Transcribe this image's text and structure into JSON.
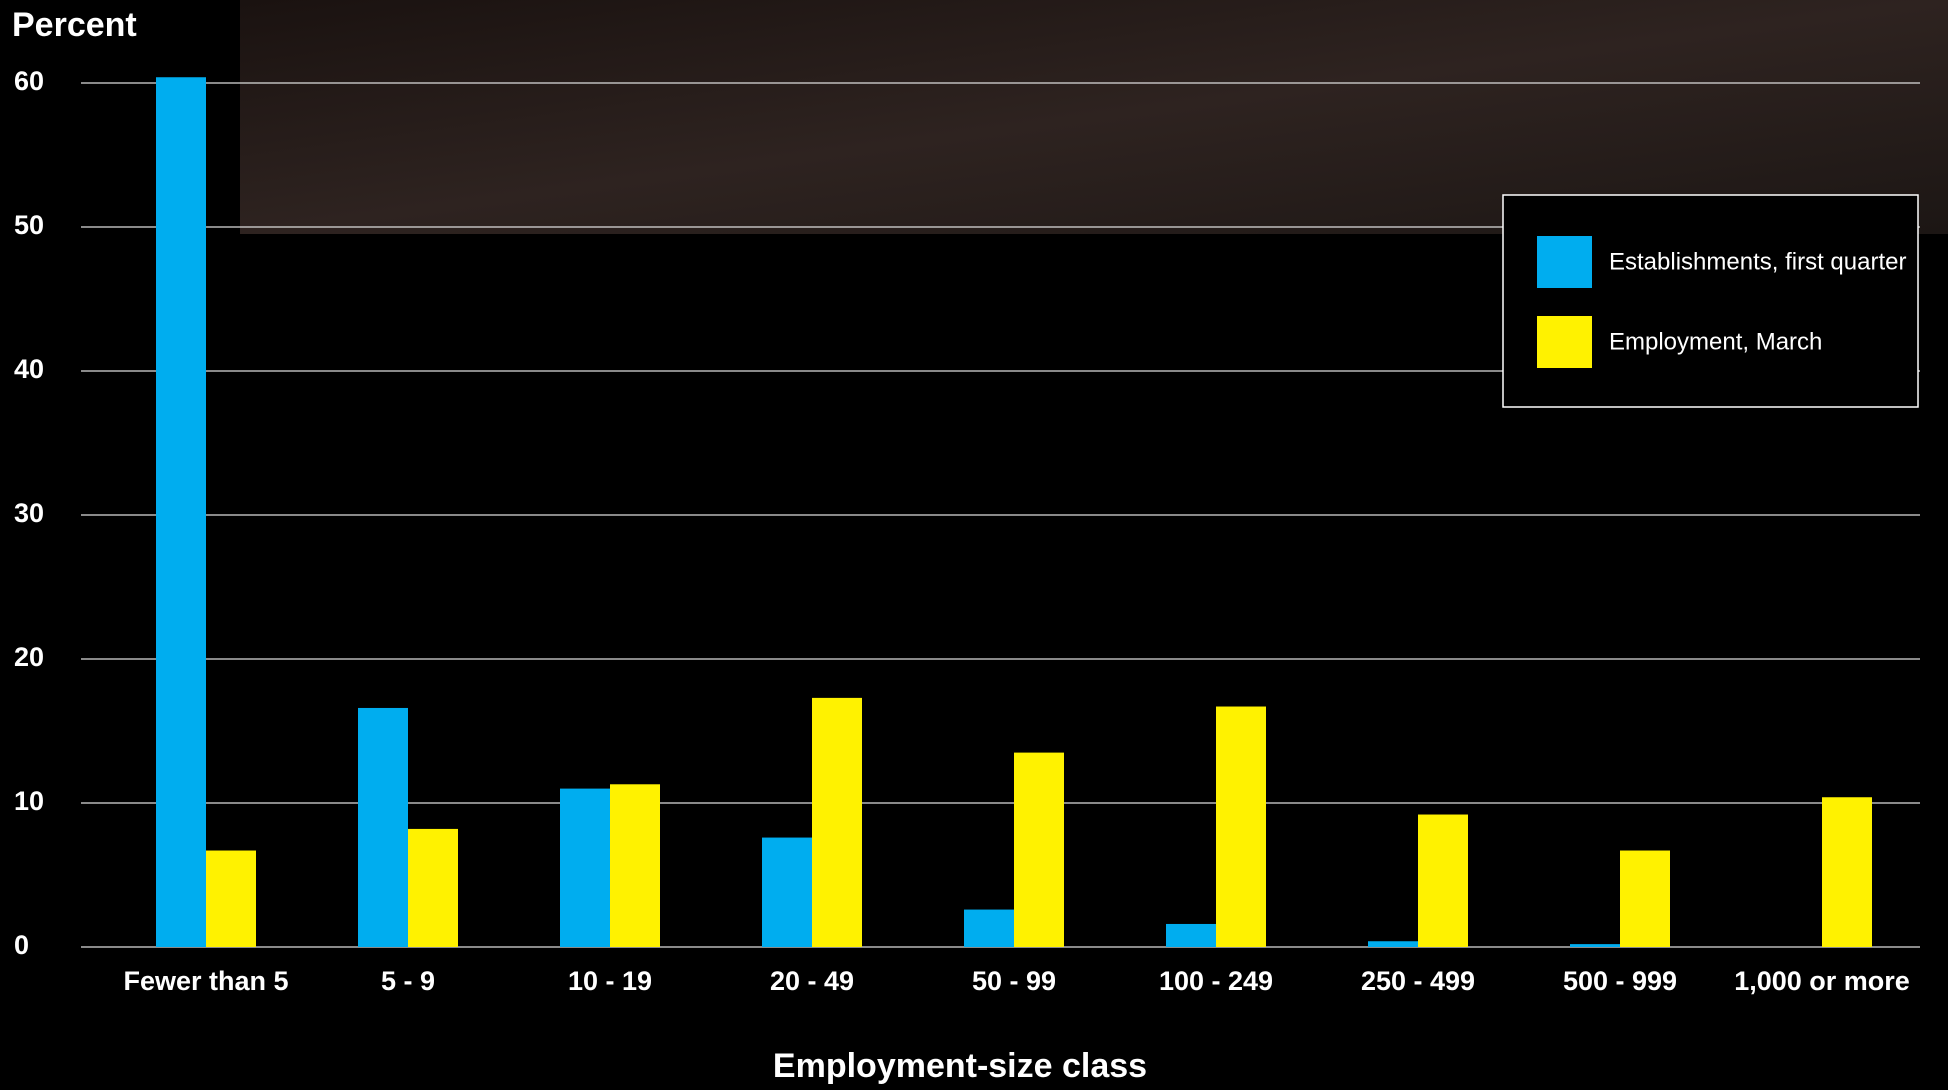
{
  "chart_data": {
    "type": "bar",
    "y_label": "Percent",
    "x_label": "Employment-size class",
    "categories": [
      "Fewer than 5",
      "5 - 9",
      "10 - 19",
      "20 - 49",
      "50 - 99",
      "100 - 249",
      "250 - 499",
      "500 - 999",
      "1,000 or more"
    ],
    "series": [
      {
        "name": "Establishments, first quarter",
        "color": "#00adef",
        "values": [
          60.4,
          16.6,
          11.0,
          7.6,
          2.6,
          1.6,
          0.4,
          0.2,
          0
        ]
      },
      {
        "name": "Employment, March",
        "color": "#fff200",
        "values": [
          6.7,
          8.2,
          11.3,
          17.3,
          13.5,
          16.7,
          9.2,
          6.7,
          10.4
        ]
      }
    ],
    "ylim": [
      0,
      60
    ],
    "yticks": [
      0,
      10,
      20,
      30,
      40,
      50,
      60
    ],
    "grid": true,
    "legend": "upper right"
  }
}
